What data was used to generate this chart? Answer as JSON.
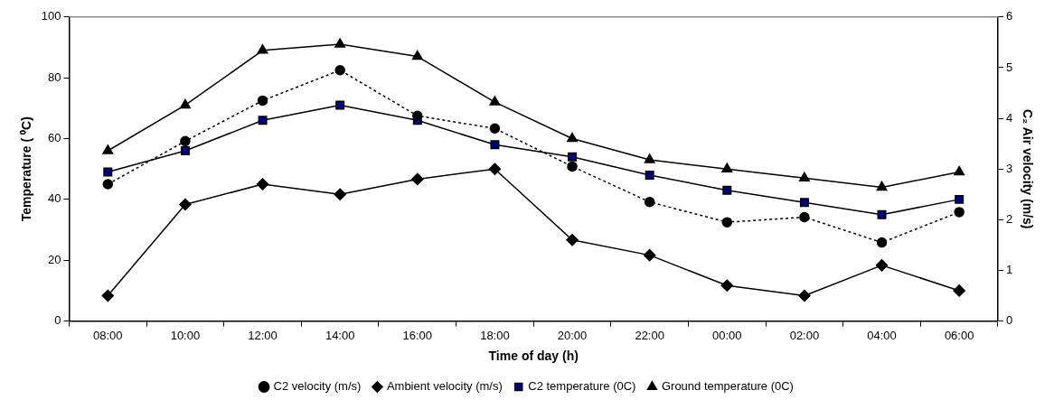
{
  "chart_data": {
    "type": "line",
    "xlabel": "Time of day (h)",
    "ylabel": "Temperature ( ⁰C)",
    "y2label": "C₂ Air velocity (m/s)",
    "categories": [
      "08:00",
      "10:00",
      "12:00",
      "14:00",
      "16:00",
      "18:00",
      "20:00",
      "22:00",
      "00:00",
      "02:00",
      "04:00",
      "06:00"
    ],
    "ylim": [
      0,
      100
    ],
    "yticks": [
      0,
      20,
      40,
      60,
      80,
      100
    ],
    "y2lim": [
      0,
      6
    ],
    "y2ticks": [
      0,
      1,
      2,
      3,
      4,
      5,
      6
    ],
    "grid": false,
    "legend": "bottom",
    "series": [
      {
        "name": "Ground temperature (0C)",
        "color": "#000000",
        "marker": "triangle",
        "line_style": "solid",
        "values": [
          56,
          71,
          89,
          91,
          87,
          72,
          60,
          53,
          50,
          47,
          44,
          49
        ]
      },
      {
        "name": "C2 temperature (0C)",
        "color": "#000080",
        "marker": "square",
        "line_style": "solid",
        "values": [
          49,
          56,
          66,
          71,
          66,
          58,
          54,
          48,
          43,
          39,
          35,
          40
        ]
      },
      {
        "name": "Ambient velocity (m/s)",
        "color": "#000000",
        "marker": "diamond",
        "line_style": "solid",
        "axis": "y2",
        "values": [
          0.5,
          2.3,
          2.7,
          2.5,
          2.8,
          3.0,
          1.6,
          1.3,
          0.7,
          0.5,
          1.1,
          0.6
        ]
      },
      {
        "name": "C2 velocity (m/s)",
        "color": "#000000",
        "marker": "circle",
        "line_style": "dotted",
        "axis": "y2",
        "values": [
          2.7,
          3.55,
          4.35,
          4.95,
          4.05,
          3.8,
          3.05,
          2.35,
          1.95,
          2.05,
          1.55,
          2.15
        ]
      }
    ]
  }
}
